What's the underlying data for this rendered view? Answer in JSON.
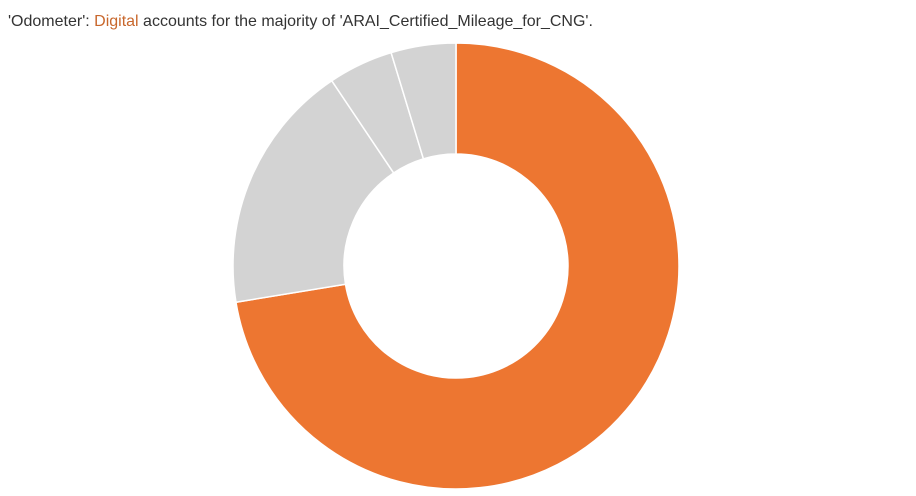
{
  "title": {
    "prefix": "'Odometer': ",
    "highlight": "Digital",
    "middle": " accounts for the majority of ",
    "subject": "'ARAI_Certified_Mileage_for_CNG'",
    "suffix": "."
  },
  "colors": {
    "highlight": "#ED7631",
    "other": "#D3D3D3",
    "separator": "#ffffff"
  },
  "chart_data": {
    "type": "pie",
    "donut": true,
    "categories": [
      "Digital",
      "",
      "",
      ""
    ],
    "values": [
      72.4,
      18.2,
      4.7,
      4.7
    ],
    "highlighted_category": "Digital"
  }
}
